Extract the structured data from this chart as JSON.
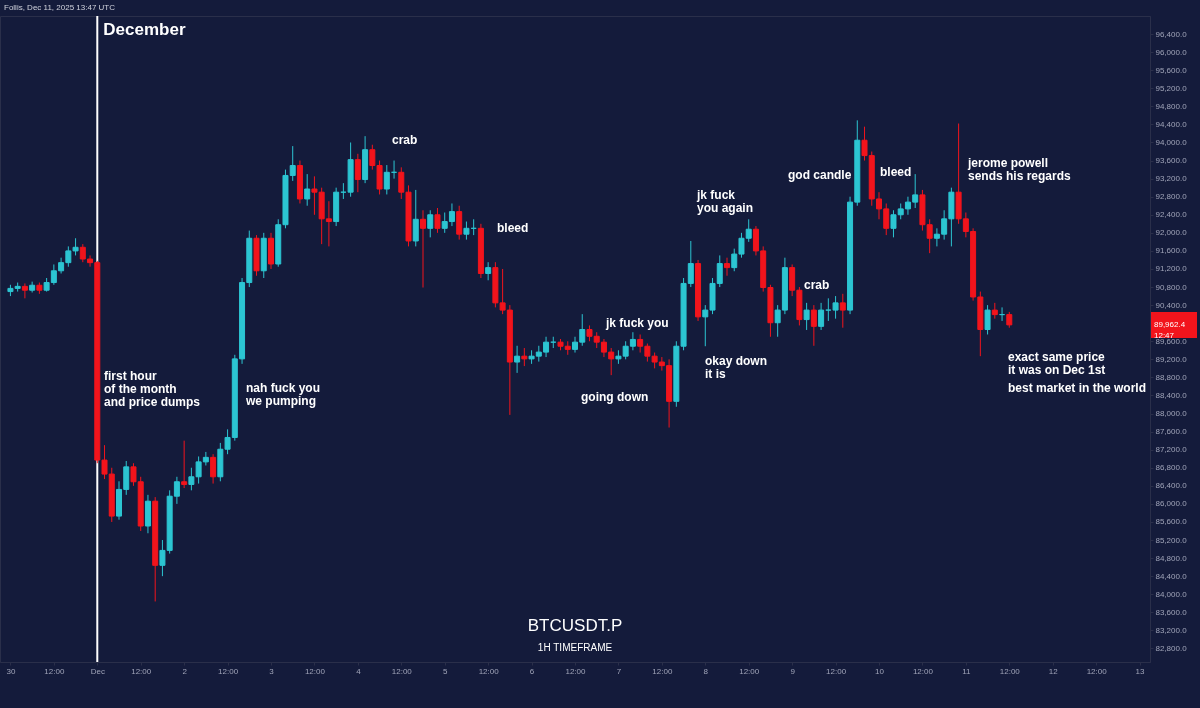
{
  "chart_data": {
    "type": "candlestick",
    "title": "BTCUSDT.P",
    "subtitle": "1H TIMEFRAME",
    "x": [
      "2025-11-30T00:00",
      "2025-11-30T02:00",
      "2025-11-30T04:00",
      "2025-11-30T06:00",
      "2025-11-30T08:00",
      "2025-11-30T10:00",
      "2025-11-30T12:00",
      "2025-11-30T14:00",
      "2025-11-30T16:00",
      "2025-11-30T18:00",
      "2025-11-30T20:00",
      "2025-11-30T22:00",
      "2025-12-01T00:00",
      "2025-12-01T02:00",
      "2025-12-01T04:00",
      "2025-12-01T06:00",
      "2025-12-01T08:00",
      "2025-12-01T10:00",
      "2025-12-01T12:00",
      "2025-12-01T14:00",
      "2025-12-01T16:00",
      "2025-12-01T18:00",
      "2025-12-01T20:00",
      "2025-12-01T22:00",
      "2025-12-02T00:00",
      "2025-12-02T02:00",
      "2025-12-02T04:00",
      "2025-12-02T06:00",
      "2025-12-02T08:00",
      "2025-12-02T10:00",
      "2025-12-02T12:00",
      "2025-12-02T14:00",
      "2025-12-02T16:00",
      "2025-12-02T18:00",
      "2025-12-02T20:00",
      "2025-12-02T22:00",
      "2025-12-03T00:00",
      "2025-12-03T02:00",
      "2025-12-03T04:00",
      "2025-12-03T06:00",
      "2025-12-03T08:00",
      "2025-12-03T10:00",
      "2025-12-03T12:00",
      "2025-12-03T14:00",
      "2025-12-03T16:00",
      "2025-12-03T18:00",
      "2025-12-03T20:00",
      "2025-12-03T22:00",
      "2025-12-04T00:00",
      "2025-12-04T02:00",
      "2025-12-04T04:00",
      "2025-12-04T06:00",
      "2025-12-04T08:00",
      "2025-12-04T10:00",
      "2025-12-04T12:00",
      "2025-12-04T14:00",
      "2025-12-04T16:00",
      "2025-12-04T18:00",
      "2025-12-04T20:00",
      "2025-12-04T22:00",
      "2025-12-05T00:00",
      "2025-12-05T02:00",
      "2025-12-05T04:00",
      "2025-12-05T06:00",
      "2025-12-05T08:00",
      "2025-12-05T10:00",
      "2025-12-05T12:00",
      "2025-12-05T14:00",
      "2025-12-05T16:00",
      "2025-12-05T18:00",
      "2025-12-05T20:00",
      "2025-12-05T22:00",
      "2025-12-06T00:00",
      "2025-12-06T02:00",
      "2025-12-06T04:00",
      "2025-12-06T06:00",
      "2025-12-06T08:00",
      "2025-12-06T10:00",
      "2025-12-06T12:00",
      "2025-12-06T14:00",
      "2025-12-06T16:00",
      "2025-12-06T18:00",
      "2025-12-06T20:00",
      "2025-12-06T22:00",
      "2025-12-07T00:00",
      "2025-12-07T02:00",
      "2025-12-07T04:00",
      "2025-12-07T06:00",
      "2025-12-07T08:00",
      "2025-12-07T10:00",
      "2025-12-07T12:00",
      "2025-12-07T14:00",
      "2025-12-07T16:00",
      "2025-12-07T18:00",
      "2025-12-07T20:00",
      "2025-12-07T22:00",
      "2025-12-08T00:00",
      "2025-12-08T02:00",
      "2025-12-08T04:00",
      "2025-12-08T06:00",
      "2025-12-08T08:00",
      "2025-12-08T10:00",
      "2025-12-08T12:00",
      "2025-12-08T14:00",
      "2025-12-08T16:00",
      "2025-12-08T18:00",
      "2025-12-08T20:00",
      "2025-12-08T22:00",
      "2025-12-09T00:00",
      "2025-12-09T02:00",
      "2025-12-09T04:00",
      "2025-12-09T06:00",
      "2025-12-09T08:00",
      "2025-12-09T10:00",
      "2025-12-09T12:00",
      "2025-12-09T14:00",
      "2025-12-09T16:00",
      "2025-12-09T18:00",
      "2025-12-09T20:00",
      "2025-12-09T22:00",
      "2025-12-10T00:00",
      "2025-12-10T02:00",
      "2025-12-10T04:00",
      "2025-12-10T06:00",
      "2025-12-10T08:00",
      "2025-12-10T10:00",
      "2025-12-10T12:00",
      "2025-12-10T14:00",
      "2025-12-10T16:00",
      "2025-12-10T18:00",
      "2025-12-10T20:00",
      "2025-12-10T22:00",
      "2025-12-11T00:00",
      "2025-12-11T02:00",
      "2025-12-11T04:00",
      "2025-12-11T06:00",
      "2025-12-11T08:00",
      "2025-12-11T10:00",
      "2025-12-11T12:00"
    ],
    "ohlc": [
      [
        90700,
        90850,
        90600,
        90770
      ],
      [
        90770,
        90900,
        90700,
        90815
      ],
      [
        90815,
        90880,
        90550,
        90730
      ],
      [
        90730,
        90920,
        90680,
        90840
      ],
      [
        90840,
        90900,
        90650,
        90730
      ],
      [
        90730,
        91000,
        90700,
        90900
      ],
      [
        90900,
        91300,
        90850,
        91160
      ],
      [
        91160,
        91450,
        91100,
        91340
      ],
      [
        91340,
        91700,
        91250,
        91600
      ],
      [
        91600,
        91880,
        91500,
        91680
      ],
      [
        91680,
        91750,
        91350,
        91420
      ],
      [
        91420,
        91500,
        91250,
        91340
      ],
      [
        91340,
        91380,
        86900,
        86970
      ],
      [
        86970,
        87300,
        86550,
        86660
      ],
      [
        86660,
        86800,
        85600,
        85730
      ],
      [
        85730,
        86500,
        85650,
        86320
      ],
      [
        86320,
        86950,
        86200,
        86820
      ],
      [
        86820,
        86900,
        86400,
        86490
      ],
      [
        86490,
        86600,
        85400,
        85510
      ],
      [
        85510,
        86200,
        85350,
        86060
      ],
      [
        86060,
        86150,
        83840,
        84640
      ],
      [
        84640,
        85200,
        84400,
        84970
      ],
      [
        84970,
        86300,
        84900,
        86170
      ],
      [
        86170,
        86600,
        86000,
        86490
      ],
      [
        86490,
        87400,
        86350,
        86430
      ],
      [
        86430,
        86800,
        86300,
        86600
      ],
      [
        86600,
        87050,
        86450,
        86930
      ],
      [
        86930,
        87150,
        86850,
        87030
      ],
      [
        87030,
        87100,
        86450,
        86600
      ],
      [
        86600,
        87350,
        86500,
        87210
      ],
      [
        87210,
        87650,
        87100,
        87470
      ],
      [
        87470,
        89300,
        87400,
        89210
      ],
      [
        89210,
        91000,
        89100,
        90900
      ],
      [
        90900,
        92050,
        90800,
        91880
      ],
      [
        91880,
        91950,
        91050,
        91160
      ],
      [
        91160,
        92000,
        91000,
        91880
      ],
      [
        91880,
        92000,
        91200,
        91310
      ],
      [
        91310,
        92300,
        91250,
        92180
      ],
      [
        92180,
        93400,
        92100,
        93270
      ],
      [
        93270,
        93920,
        93150,
        93490
      ],
      [
        93490,
        93600,
        92650,
        92750
      ],
      [
        92750,
        93300,
        92600,
        92970
      ],
      [
        92970,
        93250,
        92400,
        92900
      ],
      [
        92900,
        93000,
        91750,
        92310
      ],
      [
        92310,
        92700,
        91700,
        92250
      ],
      [
        92250,
        93000,
        92150,
        92900
      ],
      [
        92900,
        93100,
        92750,
        92900
      ],
      [
        92900,
        94000,
        92800,
        93620
      ],
      [
        93620,
        93750,
        92900,
        93180
      ],
      [
        93180,
        94140,
        93100,
        93840
      ],
      [
        93840,
        93950,
        93400,
        93490
      ],
      [
        93490,
        93600,
        92850,
        92970
      ],
      [
        92970,
        93500,
        92850,
        93340
      ],
      [
        93340,
        93600,
        93200,
        93340
      ],
      [
        93340,
        93450,
        92750,
        92900
      ],
      [
        92900,
        93050,
        91700,
        91820
      ],
      [
        91820,
        92950,
        91700,
        92300
      ],
      [
        92300,
        92500,
        90790,
        92100
      ],
      [
        92100,
        92500,
        91900,
        92400
      ],
      [
        92400,
        92550,
        92000,
        92100
      ],
      [
        92100,
        92450,
        92000,
        92250
      ],
      [
        92250,
        92650,
        92150,
        92470
      ],
      [
        92470,
        92600,
        91850,
        91970
      ],
      [
        91970,
        92250,
        91850,
        92100
      ],
      [
        92100,
        92300,
        91950,
        92100
      ],
      [
        92100,
        92200,
        91000,
        91100
      ],
      [
        91100,
        91350,
        90950,
        91230
      ],
      [
        91230,
        91350,
        90350,
        90450
      ],
      [
        90450,
        91200,
        90200,
        90290
      ],
      [
        90290,
        90400,
        87970,
        89140
      ],
      [
        89140,
        89500,
        88900,
        89270
      ],
      [
        89270,
        89450,
        89050,
        89210
      ],
      [
        89210,
        89400,
        89100,
        89270
      ],
      [
        89270,
        89500,
        89150,
        89360
      ],
      [
        89360,
        89700,
        89250,
        89580
      ],
      [
        89580,
        89700,
        89450,
        89580
      ],
      [
        89580,
        89650,
        89400,
        89490
      ],
      [
        89490,
        89600,
        89300,
        89420
      ],
      [
        89420,
        89700,
        89350,
        89580
      ],
      [
        89580,
        90200,
        89500,
        89860
      ],
      [
        89860,
        89950,
        89600,
        89710
      ],
      [
        89710,
        89800,
        89450,
        89580
      ],
      [
        89580,
        89650,
        89250,
        89360
      ],
      [
        89360,
        89450,
        88850,
        89210
      ],
      [
        89210,
        89400,
        89100,
        89270
      ],
      [
        89270,
        89600,
        89200,
        89490
      ],
      [
        89490,
        89800,
        89400,
        89640
      ],
      [
        89640,
        89750,
        89350,
        89490
      ],
      [
        89490,
        89550,
        89150,
        89270
      ],
      [
        89270,
        89350,
        89000,
        89140
      ],
      [
        89140,
        89250,
        88950,
        89060
      ],
      [
        89060,
        89200,
        87690,
        88270
      ],
      [
        88270,
        89600,
        88150,
        89490
      ],
      [
        89490,
        91000,
        89400,
        90880
      ],
      [
        90880,
        91820,
        90800,
        91320
      ],
      [
        91320,
        91400,
        90050,
        90140
      ],
      [
        90140,
        90400,
        89490,
        90290
      ],
      [
        90290,
        91000,
        90200,
        90880
      ],
      [
        90880,
        91500,
        90800,
        91320
      ],
      [
        91320,
        91450,
        91050,
        91230
      ],
      [
        91230,
        91650,
        91150,
        91530
      ],
      [
        91530,
        92000,
        91450,
        91880
      ],
      [
        91880,
        92300,
        91800,
        92080
      ],
      [
        92080,
        92150,
        91500,
        91600
      ],
      [
        91600,
        91700,
        90700,
        90790
      ],
      [
        90790,
        90850,
        89700,
        90010
      ],
      [
        90010,
        90400,
        89700,
        90290
      ],
      [
        90290,
        91450,
        90200,
        91230
      ],
      [
        91230,
        91300,
        90600,
        90730
      ],
      [
        90730,
        90800,
        89950,
        90080
      ],
      [
        90080,
        90450,
        89850,
        90290
      ],
      [
        90290,
        90400,
        89500,
        89930
      ],
      [
        89930,
        90450,
        89850,
        90290
      ],
      [
        90290,
        90550,
        90050,
        90290
      ],
      [
        90290,
        90600,
        90100,
        90450
      ],
      [
        90450,
        90650,
        89900,
        90290
      ],
      [
        90290,
        92800,
        90200,
        92680
      ],
      [
        92680,
        94490,
        92600,
        94050
      ],
      [
        94050,
        94350,
        93600,
        93710
      ],
      [
        93710,
        93800,
        92600,
        92750
      ],
      [
        92750,
        92900,
        92300,
        92530
      ],
      [
        92530,
        92650,
        91950,
        92100
      ],
      [
        92100,
        92500,
        91900,
        92400
      ],
      [
        92400,
        92650,
        92300,
        92530
      ],
      [
        92530,
        92800,
        92400,
        92680
      ],
      [
        92680,
        93300,
        92550,
        92840
      ],
      [
        92840,
        92950,
        92050,
        92180
      ],
      [
        92180,
        92300,
        91550,
        91880
      ],
      [
        91880,
        92100,
        91700,
        91970
      ],
      [
        91970,
        92500,
        91850,
        92310
      ],
      [
        92310,
        93000,
        91700,
        92900
      ],
      [
        92900,
        94420,
        92200,
        92310
      ],
      [
        92310,
        92450,
        91900,
        92030
      ],
      [
        92030,
        92100,
        90500,
        90580
      ],
      [
        90580,
        90700,
        89270,
        89860
      ],
      [
        89860,
        90400,
        89750,
        90290
      ],
      [
        90290,
        90450,
        90100,
        90190
      ],
      [
        90190,
        90350,
        90050,
        90190
      ],
      [
        90190,
        90250,
        89900,
        89962.4
      ]
    ],
    "xlim": [
      "2025-11-29T22:30",
      "2025-12-13T01:30"
    ],
    "xticks": [
      {
        "value": "2025-11-30T00:00",
        "label": "30"
      },
      {
        "value": "2025-11-30T12:00",
        "label": "12:00"
      },
      {
        "value": "2025-12-01T00:00",
        "label": "Dec"
      },
      {
        "value": "2025-12-01T12:00",
        "label": "12:00"
      },
      {
        "value": "2025-12-02T00:00",
        "label": "2"
      },
      {
        "value": "2025-12-02T12:00",
        "label": "12:00"
      },
      {
        "value": "2025-12-03T00:00",
        "label": "3"
      },
      {
        "value": "2025-12-03T12:00",
        "label": "12:00"
      },
      {
        "value": "2025-12-04T00:00",
        "label": "4"
      },
      {
        "value": "2025-12-04T12:00",
        "label": "12:00"
      },
      {
        "value": "2025-12-05T00:00",
        "label": "5"
      },
      {
        "value": "2025-12-05T12:00",
        "label": "12:00"
      },
      {
        "value": "2025-12-06T00:00",
        "label": "6"
      },
      {
        "value": "2025-12-06T12:00",
        "label": "12:00"
      },
      {
        "value": "2025-12-07T00:00",
        "label": "7"
      },
      {
        "value": "2025-12-07T12:00",
        "label": "12:00"
      },
      {
        "value": "2025-12-08T00:00",
        "label": "8"
      },
      {
        "value": "2025-12-08T12:00",
        "label": "12:00"
      },
      {
        "value": "2025-12-09T00:00",
        "label": "9"
      },
      {
        "value": "2025-12-09T12:00",
        "label": "12:00"
      },
      {
        "value": "2025-12-10T00:00",
        "label": "10"
      },
      {
        "value": "2025-12-10T12:00",
        "label": "12:00"
      },
      {
        "value": "2025-12-11T00:00",
        "label": "11"
      },
      {
        "value": "2025-12-11T12:00",
        "label": "12:00"
      },
      {
        "value": "2025-12-12T00:00",
        "label": "12"
      },
      {
        "value": "2025-12-12T12:00",
        "label": "12:00"
      },
      {
        "value": "2025-12-13T00:00",
        "label": "13"
      }
    ],
    "ylim": [
      82500,
      96800
    ],
    "yticks": [
      {
        "value": 82800,
        "label": "82,800.0"
      },
      {
        "value": 83200,
        "label": "83,200.0"
      },
      {
        "value": 83600,
        "label": "83,600.0"
      },
      {
        "value": 84000,
        "label": "84,000.0"
      },
      {
        "value": 84400,
        "label": "84,400.0"
      },
      {
        "value": 84800,
        "label": "84,800.0"
      },
      {
        "value": 85200,
        "label": "85,200.0"
      },
      {
        "value": 85600,
        "label": "85,600.0"
      },
      {
        "value": 86000,
        "label": "86,000.0"
      },
      {
        "value": 86400,
        "label": "86,400.0"
      },
      {
        "value": 86800,
        "label": "86,800.0"
      },
      {
        "value": 87200,
        "label": "87,200.0"
      },
      {
        "value": 87600,
        "label": "87,600.0"
      },
      {
        "value": 88000,
        "label": "88,000.0"
      },
      {
        "value": 88400,
        "label": "88,400.0"
      },
      {
        "value": 88800,
        "label": "88,800.0"
      },
      {
        "value": 89200,
        "label": "89,200.0"
      },
      {
        "value": 89600,
        "label": "89,600.0"
      },
      {
        "value": 90400,
        "label": "90,400.0"
      },
      {
        "value": 90800,
        "label": "90,800.0"
      },
      {
        "value": 91200,
        "label": "91,200.0"
      },
      {
        "value": 91600,
        "label": "91,600.0"
      },
      {
        "value": 92000,
        "label": "92,000.0"
      },
      {
        "value": 92400,
        "label": "92,400.0"
      },
      {
        "value": 92800,
        "label": "92,800.0"
      },
      {
        "value": 93200,
        "label": "93,200.0"
      },
      {
        "value": 93600,
        "label": "93,600.0"
      },
      {
        "value": 94000,
        "label": "94,000.0"
      },
      {
        "value": 94400,
        "label": "94,400.0"
      },
      {
        "value": 94800,
        "label": "94,800.0"
      },
      {
        "value": 95200,
        "label": "95,200.0"
      },
      {
        "value": 95600,
        "label": "95,600.0"
      },
      {
        "value": 96000,
        "label": "96,000.0"
      },
      {
        "value": 96400,
        "label": "96,400.0"
      }
    ],
    "ref_lines": [
      {
        "axis": "x",
        "value": "2025-12-01T00:00",
        "label": "December",
        "color": "#ffffff"
      }
    ],
    "annotations": [
      "Follis, Dec 11, 2025 13:47 UTC",
      "first hour\nof the month\nand price dumps",
      "nah fuck you\nwe pumping",
      "crab",
      "bleed",
      "going down",
      "jk fuck you",
      "jk fuck\nyou again",
      "okay down\nit is",
      "god candle",
      "crab",
      "bleed",
      "jerome powell\nsends his regards",
      "exact same price\nit was on Dec 1st",
      "best market in the world",
      "89,962.4\n12:47"
    ]
  }
}
